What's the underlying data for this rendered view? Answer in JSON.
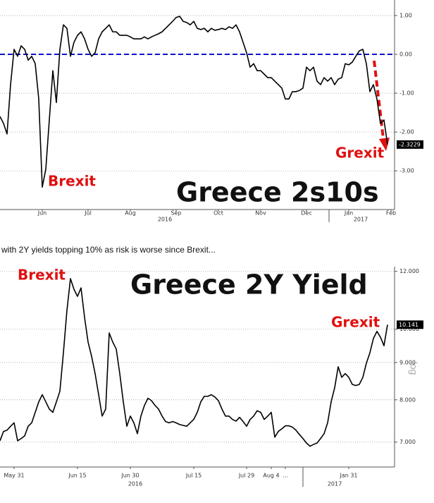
{
  "caption": "with 2Y yields topping 10% as risk is worse since Brexit...",
  "chart_data": [
    {
      "type": "line",
      "title": "Greece 2s10s",
      "color": "#000000",
      "grid": true,
      "log_scale": false,
      "reference_line": {
        "value": 0,
        "color": "#0a14c8"
      },
      "annotations": [
        {
          "text": "Brexit",
          "color": "#e01010"
        },
        {
          "text": "Grexit",
          "color": "#e01010"
        }
      ],
      "year_labels": [
        "2016",
        "2017"
      ],
      "ylim": [
        -3.96,
        1.4
      ],
      "yticks": [
        {
          "value": 1,
          "label": "1.00"
        },
        {
          "value": 0,
          "label": "0.00"
        },
        {
          "value": -1,
          "label": "-1.00"
        },
        {
          "value": -2,
          "label": "-2.00"
        },
        {
          "value": -3,
          "label": "-3.00"
        }
      ],
      "categories": [
        null,
        null,
        null,
        null,
        null,
        null,
        null,
        null,
        null,
        null,
        null,
        null,
        "Jun",
        null,
        null,
        null,
        null,
        null,
        null,
        null,
        null,
        null,
        null,
        null,
        null,
        "Jul",
        null,
        null,
        null,
        null,
        null,
        null,
        null,
        null,
        null,
        null,
        null,
        "Aug",
        null,
        null,
        null,
        null,
        null,
        null,
        null,
        null,
        null,
        null,
        null,
        null,
        "Sep",
        null,
        null,
        null,
        null,
        null,
        null,
        null,
        null,
        null,
        null,
        null,
        "Oct",
        null,
        null,
        null,
        null,
        null,
        null,
        null,
        null,
        null,
        null,
        null,
        "Nov",
        null,
        null,
        null,
        null,
        null,
        null,
        null,
        null,
        null,
        null,
        null,
        null,
        "Dec",
        null,
        null,
        null,
        null,
        null,
        null,
        null,
        null,
        null,
        null,
        null,
        "Jan",
        null,
        null,
        null,
        null,
        null,
        null,
        null,
        null,
        null,
        null,
        null,
        "Feb"
      ],
      "values": [
        -1.6,
        -1.78,
        -2.05,
        -0.78,
        0.13,
        -0.05,
        0.22,
        0.13,
        -0.15,
        -0.05,
        -0.24,
        -1.15,
        -3.42,
        -2.96,
        -1.69,
        -0.42,
        -1.24,
        0.13,
        0.76,
        0.67,
        -0.05,
        0.31,
        0.49,
        0.58,
        0.4,
        0.13,
        -0.05,
        0.04,
        0.4,
        0.58,
        0.67,
        0.76,
        0.58,
        0.58,
        0.49,
        0.49,
        0.49,
        0.45,
        0.4,
        0.4,
        0.4,
        0.45,
        0.4,
        0.45,
        0.49,
        0.53,
        0.58,
        0.67,
        0.76,
        0.85,
        0.95,
        0.98,
        0.85,
        0.82,
        0.76,
        0.85,
        0.67,
        0.64,
        0.67,
        0.58,
        0.67,
        0.62,
        0.64,
        0.67,
        0.64,
        0.71,
        0.67,
        0.76,
        0.58,
        0.31,
        0.04,
        -0.33,
        -0.24,
        -0.42,
        -0.42,
        -0.51,
        -0.6,
        -0.6,
        -0.69,
        -0.78,
        -0.87,
        -1.15,
        -1.15,
        -0.96,
        -0.96,
        -0.93,
        -0.87,
        -0.33,
        -0.42,
        -0.33,
        -0.69,
        -0.78,
        -0.6,
        -0.69,
        -0.6,
        -0.78,
        -0.64,
        -0.6,
        -0.24,
        -0.27,
        -0.2,
        -0.05,
        0.09,
        0.13,
        -0.24,
        -0.96,
        -0.78,
        -1.15,
        -1.78,
        -1.69,
        -2.3229,
        null
      ]
    },
    {
      "type": "line",
      "title": "Greece 2Y Yield",
      "color": "#000000",
      "grid": true,
      "log_scale": true,
      "scale_note": "log",
      "annotations": [
        {
          "text": "Brexit",
          "color": "#e01010"
        },
        {
          "text": "Grexit",
          "color": "#e01010"
        }
      ],
      "year_labels": [
        "2016",
        "2017"
      ],
      "ylim": [
        6.5,
        12.18
      ],
      "yticks": [
        {
          "value": 12,
          "label": "12.000"
        },
        {
          "value": 10,
          "label": "10.000"
        },
        {
          "value": 9,
          "label": "9.000"
        },
        {
          "value": 8,
          "label": "8.000"
        },
        {
          "value": 7,
          "label": "7.000"
        }
      ],
      "categories": [
        null,
        null,
        null,
        null,
        "May 31",
        null,
        null,
        null,
        null,
        null,
        null,
        null,
        null,
        null,
        null,
        null,
        null,
        null,
        null,
        null,
        null,
        null,
        "Jun 15",
        null,
        null,
        null,
        null,
        null,
        null,
        null,
        null,
        null,
        null,
        null,
        null,
        null,
        null,
        "Jun 30",
        null,
        null,
        null,
        null,
        null,
        null,
        null,
        null,
        null,
        null,
        null,
        null,
        null,
        null,
        null,
        null,
        null,
        "Jul 15",
        null,
        null,
        null,
        null,
        null,
        null,
        null,
        null,
        null,
        null,
        null,
        null,
        null,
        null,
        "Jul 29",
        null,
        null,
        null,
        null,
        null,
        null,
        "Aug 4",
        null,
        null,
        null,
        "...",
        null,
        null,
        null,
        null,
        null,
        null,
        null,
        null,
        null,
        null,
        null,
        null,
        null,
        null,
        null,
        null,
        null,
        "Jan 31",
        null,
        null,
        null,
        null,
        null,
        null,
        null,
        null,
        null,
        null,
        null
      ],
      "values": [
        7.03,
        7.24,
        7.27,
        7.36,
        7.44,
        7.03,
        7.08,
        7.14,
        7.36,
        7.44,
        7.69,
        7.95,
        8.13,
        7.95,
        7.77,
        7.69,
        7.95,
        8.22,
        9.28,
        10.61,
        11.73,
        11.34,
        11.09,
        11.39,
        10.38,
        9.6,
        9.18,
        8.69,
        8.13,
        7.6,
        7.77,
        9.88,
        9.6,
        9.39,
        8.69,
        7.95,
        7.36,
        7.6,
        7.44,
        7.19,
        7.6,
        7.86,
        8.04,
        7.98,
        7.86,
        7.77,
        7.6,
        7.47,
        7.44,
        7.47,
        7.44,
        7.4,
        7.38,
        7.36,
        7.44,
        7.52,
        7.69,
        7.95,
        8.09,
        8.09,
        8.13,
        8.07,
        7.98,
        7.77,
        7.6,
        7.6,
        7.52,
        7.48,
        7.57,
        7.47,
        7.36,
        7.52,
        7.6,
        7.73,
        7.69,
        7.52,
        7.6,
        7.69,
        7.11,
        7.24,
        7.3,
        7.37,
        7.37,
        7.34,
        7.27,
        7.17,
        7.08,
        6.98,
        6.91,
        6.95,
        6.98,
        7.08,
        7.19,
        7.44,
        7.95,
        8.31,
        8.88,
        8.59,
        8.69,
        8.59,
        8.4,
        8.37,
        8.4,
        8.59,
        8.98,
        9.28,
        9.71,
        9.93,
        9.75,
        9.49,
        10.141
      ]
    }
  ]
}
